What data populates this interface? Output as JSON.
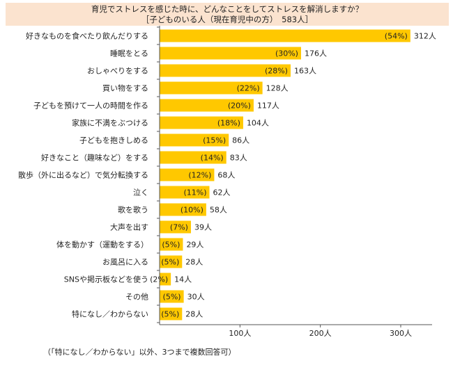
{
  "title": {
    "line1": "育児でストレスを感じた時に、どんなことをしてストレスを解消しますか？",
    "line2": "［子どものいる人（現在育児中の方）　583人］"
  },
  "footnote": "（「特になし／わからない」以外、3つまで複数回答可）",
  "colors": {
    "bar": "#ffc800",
    "axis": "#555555"
  },
  "chart_data": {
    "type": "bar",
    "orientation": "horizontal",
    "categories": [
      "好きなものを食べたり飲んだりする",
      "睡眠をとる",
      "おしゃべりをする",
      "買い物をする",
      "子どもを預けて一人の時間を作る",
      "家族に不満をぶつける",
      "子どもを抱きしめる",
      "好きなこと（趣味など）をする",
      "散歩（外に出るなど）で気分転換する",
      "泣く",
      "歌を歌う",
      "大声を出す",
      "体を動かす（運動をする）",
      "お風呂に入る",
      "SNSや掲示板などを使う",
      "その他",
      "特になし／わからない"
    ],
    "values": [
      312,
      176,
      163,
      128,
      117,
      104,
      86,
      83,
      68,
      62,
      58,
      39,
      29,
      28,
      14,
      30,
      28
    ],
    "percent_labels": [
      "(54%)",
      "(30%)",
      "(28%)",
      "(22%)",
      "(20%)",
      "(18%)",
      "(15%)",
      "(14%)",
      "(12%)",
      "(11%)",
      "(10%)",
      "(7%)",
      "(5%)",
      "(5%)",
      "(2%)",
      "(5%)",
      "(5%)"
    ],
    "count_labels": [
      "312人",
      "176人",
      "163人",
      "128人",
      "117人",
      "104人",
      "86人",
      "83人",
      "68人",
      "62人",
      "58人",
      "39人",
      "29人",
      "28人",
      "14人",
      "30人",
      "28人"
    ],
    "xlim": [
      0,
      340
    ],
    "xticks": [
      100,
      200,
      300
    ],
    "xtick_labels": [
      "100人",
      "200人",
      "300人"
    ],
    "grid": false,
    "legend": "none"
  }
}
